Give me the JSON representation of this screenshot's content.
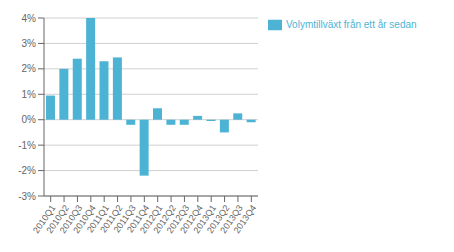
{
  "chart_data": {
    "type": "bar",
    "categories": [
      "2010Q1",
      "2010Q2",
      "2010Q3",
      "2010Q4",
      "2011Q1",
      "2011Q2",
      "2011Q3",
      "2011Q4",
      "2012Q1",
      "2012Q2",
      "2012Q3",
      "2012Q4",
      "2013Q1",
      "2013Q2",
      "2013Q3",
      "2013Q4"
    ],
    "series": [
      {
        "name": "Volymtillväxt från ett år sedan",
        "color": "#4db3d4",
        "values": [
          0.95,
          2.0,
          2.4,
          4.0,
          2.3,
          2.45,
          -0.2,
          -2.2,
          0.45,
          -0.2,
          -0.2,
          0.15,
          -0.05,
          -0.5,
          0.25,
          -0.1
        ]
      }
    ],
    "ylim": [
      -3,
      4
    ],
    "yticks": [
      {
        "value": -3,
        "label": "-3%"
      },
      {
        "value": -2,
        "label": "-2%"
      },
      {
        "value": -1,
        "label": "-1%"
      },
      {
        "value": 0,
        "label": "0%"
      },
      {
        "value": 1,
        "label": "1%"
      },
      {
        "value": 2,
        "label": "2%"
      },
      {
        "value": 3,
        "label": "3%"
      },
      {
        "value": 4,
        "label": "4%"
      }
    ],
    "grid": true,
    "legend": "right"
  }
}
